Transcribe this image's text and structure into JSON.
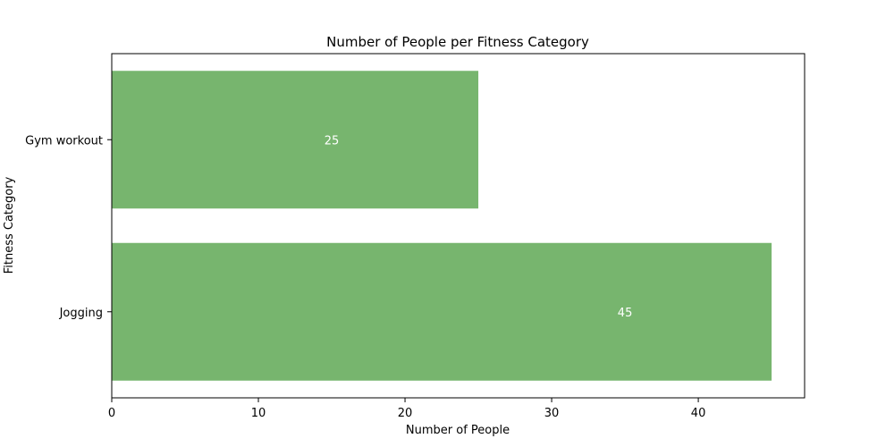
{
  "chart_data": {
    "type": "bar",
    "orientation": "horizontal",
    "title": "Number of People per Fitness Category",
    "xlabel": "Number of People",
    "ylabel": "Fitness Category",
    "categories": [
      "Jogging",
      "Gym workout"
    ],
    "values": [
      45,
      25
    ],
    "xlim": [
      0,
      47.25
    ],
    "xticks": [
      0,
      10,
      20,
      30,
      40
    ],
    "bar_color": "#77b56e",
    "data_label_color": "#ffffff",
    "grid": false,
    "legend": "none"
  }
}
